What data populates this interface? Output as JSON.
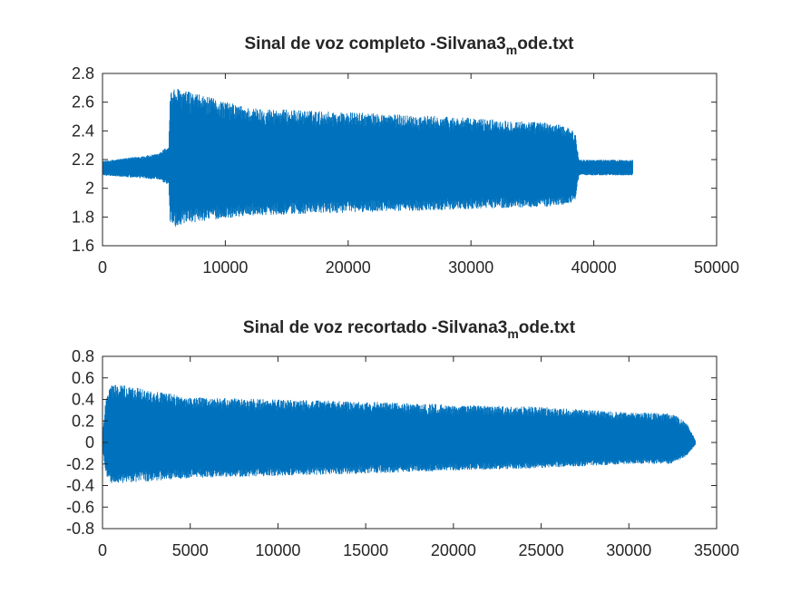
{
  "chart_data": [
    {
      "type": "line",
      "title": "Sinal de voz completo -Silvana3",
      "title_subscript": "m",
      "title_suffix": "ode.txt",
      "xlabel": "",
      "ylabel": "",
      "xlim": [
        0,
        50000
      ],
      "ylim": [
        1.6,
        2.8
      ],
      "xticks": [
        "0",
        "10000",
        "20000",
        "30000",
        "40000",
        "50000"
      ],
      "yticks": [
        "1.6",
        "1.8",
        "2",
        "2.2",
        "2.4",
        "2.6",
        "2.8"
      ],
      "grid": false,
      "color": "#0072bd",
      "signal": {
        "n_samples": 43200,
        "baseline": 2.14,
        "envelope_x": [
          0,
          4500,
          5400,
          5500,
          6000,
          8000,
          12000,
          20000,
          28000,
          36000,
          38000,
          38500,
          38800,
          43200
        ],
        "envelope_upper": [
          2.19,
          2.24,
          2.3,
          2.68,
          2.7,
          2.65,
          2.56,
          2.53,
          2.5,
          2.46,
          2.43,
          2.38,
          2.2,
          2.2
        ],
        "envelope_lower": [
          2.09,
          2.06,
          2.02,
          1.76,
          1.73,
          1.77,
          1.81,
          1.83,
          1.85,
          1.87,
          1.89,
          1.92,
          2.09,
          2.09
        ]
      }
    },
    {
      "type": "line",
      "title": "Sinal de voz recortado -Silvana3",
      "title_subscript": "m",
      "title_suffix": "ode.txt",
      "xlabel": "",
      "ylabel": "",
      "xlim": [
        0,
        35000
      ],
      "ylim": [
        -0.8,
        0.8
      ],
      "xticks": [
        "0",
        "5000",
        "10000",
        "15000",
        "20000",
        "25000",
        "30000",
        "35000"
      ],
      "yticks": [
        "-0.8",
        "-0.6",
        "-0.4",
        "-0.2",
        "0",
        "0.2",
        "0.4",
        "0.6",
        "0.8"
      ],
      "grid": false,
      "color": "#0072bd",
      "signal": {
        "n_samples": 33800,
        "baseline": 0,
        "envelope_x": [
          0,
          200,
          500,
          2000,
          5000,
          10000,
          15000,
          20000,
          25000,
          30000,
          32500,
          33300,
          33800
        ],
        "envelope_upper": [
          0.05,
          0.45,
          0.55,
          0.51,
          0.42,
          0.4,
          0.38,
          0.35,
          0.33,
          0.28,
          0.27,
          0.18,
          0.02
        ],
        "envelope_lower": [
          -0.05,
          -0.3,
          -0.38,
          -0.37,
          -0.33,
          -0.31,
          -0.29,
          -0.26,
          -0.24,
          -0.2,
          -0.2,
          -0.12,
          -0.02
        ]
      }
    }
  ]
}
